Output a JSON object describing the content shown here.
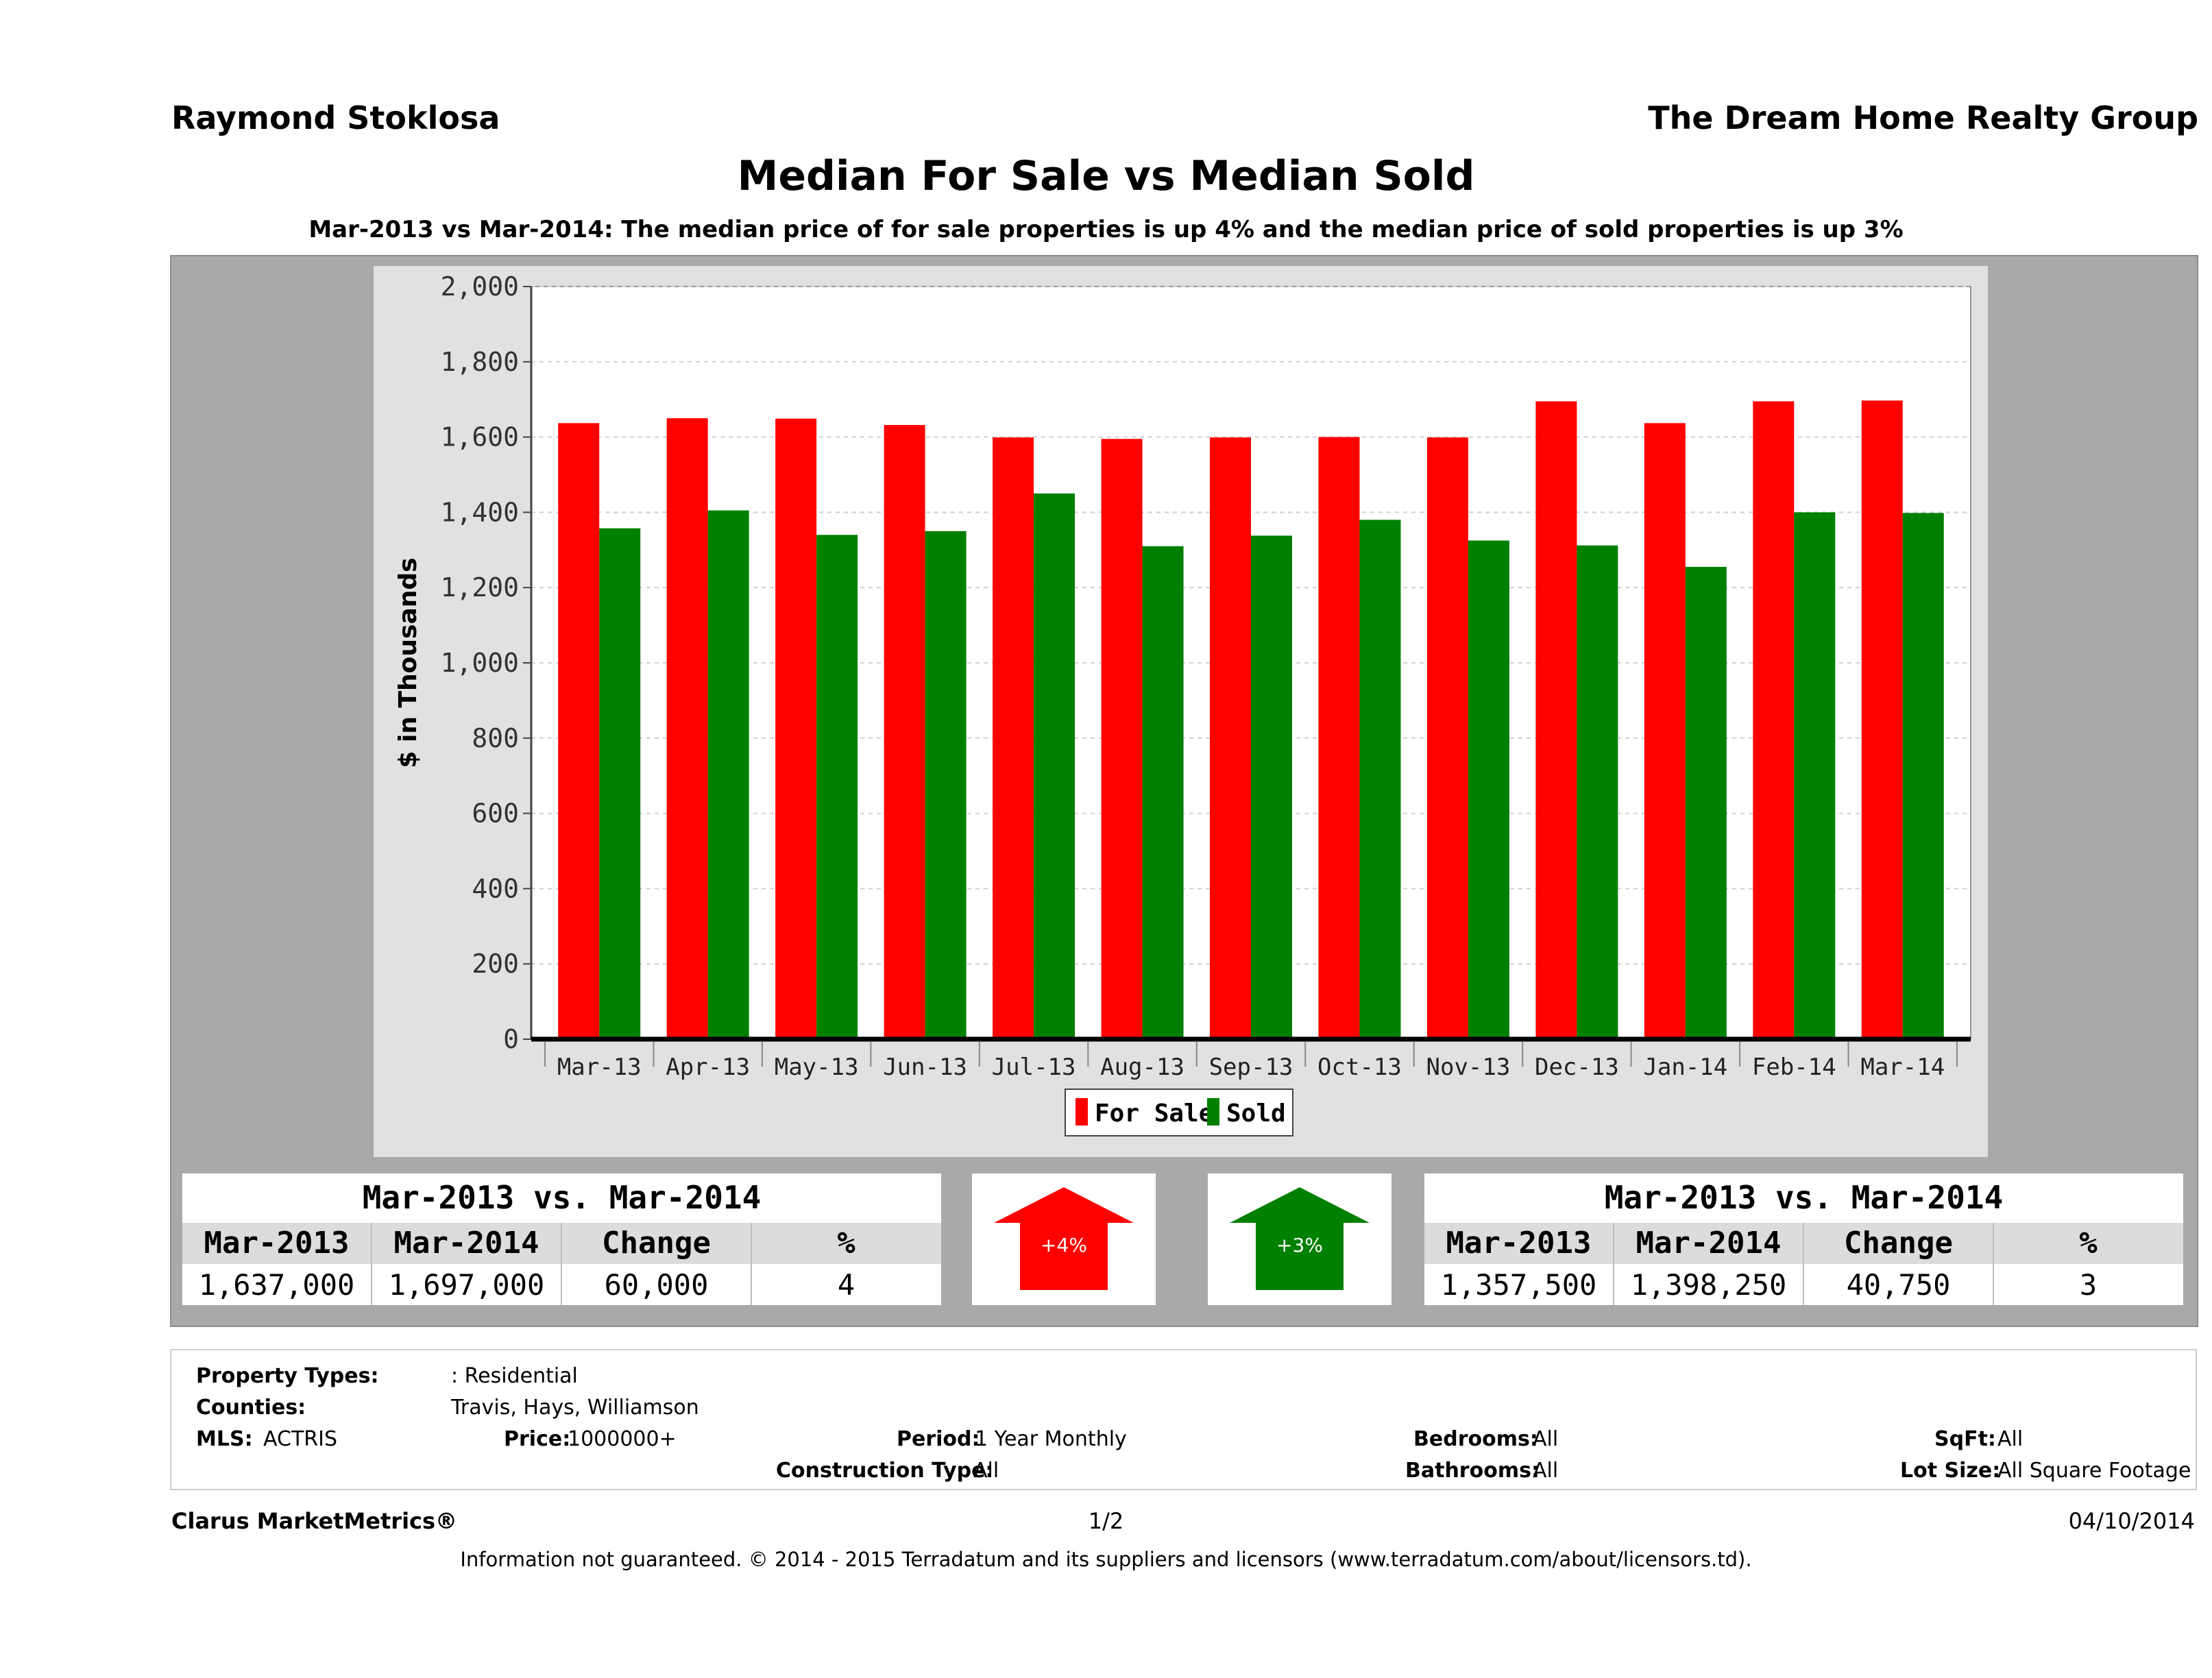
{
  "header": {
    "agent": "Raymond Stoklosa",
    "company": "The Dream Home Realty Group",
    "title": "Median For Sale vs Median Sold",
    "subtitle": "Mar-2013 vs Mar-2014: The median price of for sale properties is up 4% and the median price of sold properties is up 3%"
  },
  "colors": {
    "for_sale": "#ff0000",
    "sold": "#008000",
    "panel": "#a9a9a9",
    "plot_bg": "#ffffff"
  },
  "chart_data": {
    "type": "bar",
    "ylabel": "$ in Thousands",
    "xlabel": "",
    "ylim": [
      0,
      2000
    ],
    "yticks": [
      "0",
      "200",
      "400",
      "600",
      "800",
      "1,000",
      "1,200",
      "1,400",
      "1,600",
      "1,800",
      "2,000"
    ],
    "categories": [
      "Mar-13",
      "Apr-13",
      "May-13",
      "Jun-13",
      "Jul-13",
      "Aug-13",
      "Sep-13",
      "Oct-13",
      "Nov-13",
      "Dec-13",
      "Jan-14",
      "Feb-14",
      "Mar-14"
    ],
    "series": [
      {
        "name": "For Sale",
        "color": "#ff0000",
        "values": [
          1637,
          1650,
          1649,
          1632,
          1599,
          1595,
          1599,
          1600,
          1599,
          1695,
          1637,
          1695,
          1697
        ]
      },
      {
        "name": "Sold",
        "color": "#008000",
        "values": [
          1357.5,
          1405,
          1340,
          1350,
          1450,
          1310,
          1338,
          1380,
          1325,
          1312,
          1255,
          1400,
          1398.25
        ]
      }
    ],
    "grid": true,
    "legend": "bottom-center"
  },
  "left_stats": {
    "heading": "Mar-2013 vs. Mar-2014",
    "columns": [
      "Mar-2013",
      "Mar-2014",
      "Change",
      "%"
    ],
    "values": [
      "1,637,000",
      "1,697,000",
      "60,000",
      "4"
    ]
  },
  "right_stats": {
    "heading": "Mar-2013 vs. Mar-2014",
    "columns": [
      "Mar-2013",
      "Mar-2014",
      "Change",
      "%"
    ],
    "values": [
      "1,357,500",
      "1,398,250",
      "40,750",
      "3"
    ]
  },
  "arrows": {
    "for_sale": {
      "label": "+4%",
      "direction": "up",
      "icon": "arrow-up-icon"
    },
    "sold": {
      "label": "+3%",
      "direction": "up",
      "icon": "arrow-up-icon"
    }
  },
  "properties": {
    "property_types_label": "Property Types:",
    "property_types_value": ": Residential",
    "counties_label": "Counties:",
    "counties_value": "Travis, Hays, Williamson",
    "mls_label": "MLS:",
    "mls_value": "ACTRIS",
    "price_label": "Price:",
    "price_value": "1000000+",
    "period_label": "Period:",
    "period_value": "1 Year Monthly",
    "construction_label": "Construction Type:",
    "construction_value": "All",
    "bedrooms_label": "Bedrooms:",
    "bedrooms_value": "All",
    "bathrooms_label": "Bathrooms:",
    "bathrooms_value": "All",
    "sqft_label": "SqFt:",
    "sqft_value": "All",
    "lot_label": "Lot Size:",
    "lot_value": "All Square Footage"
  },
  "footer": {
    "brand": "Clarus MarketMetrics®",
    "page": "1/2",
    "date": "04/10/2014",
    "disclaimer": "Information not guaranteed. © 2014 - 2015 Terradatum and its suppliers and licensors (www.terradatum.com/about/licensors.td)."
  }
}
